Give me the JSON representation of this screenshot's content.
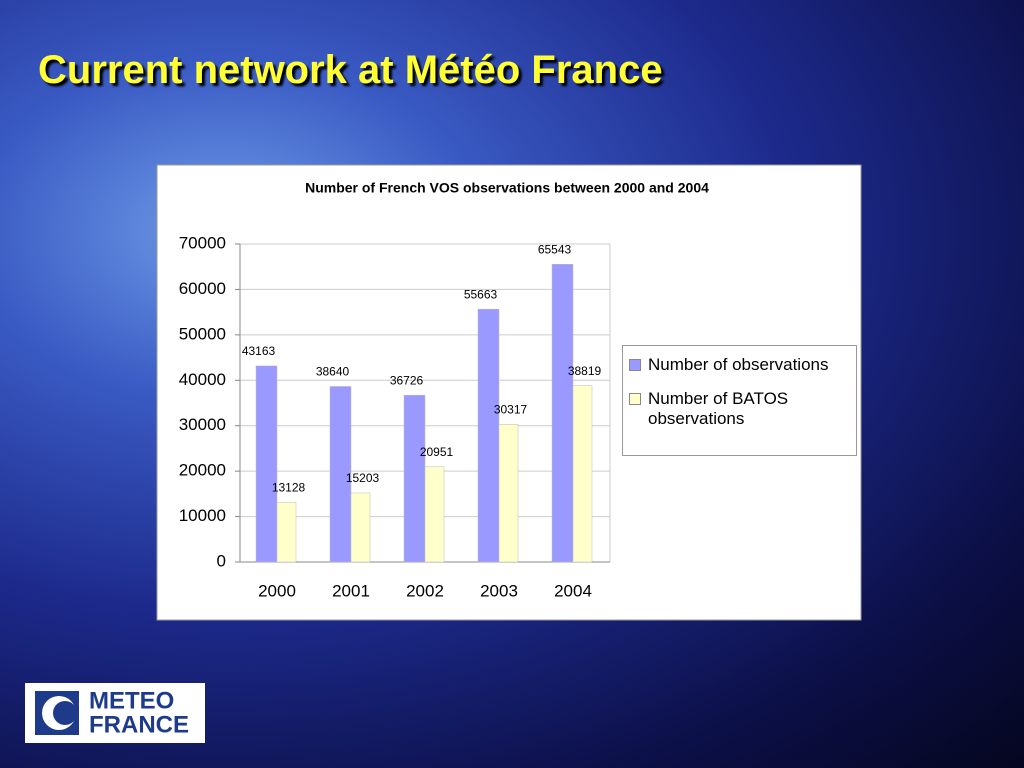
{
  "title": "Current network at Météo France",
  "logo": {
    "line1": "METEO",
    "line2": "FRANCE"
  },
  "chart_data": {
    "type": "bar",
    "title": "Number of French VOS observations between 2000 and 2004",
    "categories": [
      "2000",
      "2001",
      "2002",
      "2003",
      "2004"
    ],
    "series": [
      {
        "name": "Number of observations",
        "color": "#9999ff",
        "values": [
          43163,
          38640,
          36726,
          55663,
          65543
        ]
      },
      {
        "name": "Number of BATOS observations",
        "color": "#ffffcc",
        "values": [
          13128,
          15203,
          20951,
          30317,
          38819
        ]
      }
    ],
    "ylim": [
      0,
      70000
    ],
    "yticks": [
      0,
      10000,
      20000,
      30000,
      40000,
      50000,
      60000,
      70000
    ],
    "grid": true,
    "legend": "right"
  }
}
